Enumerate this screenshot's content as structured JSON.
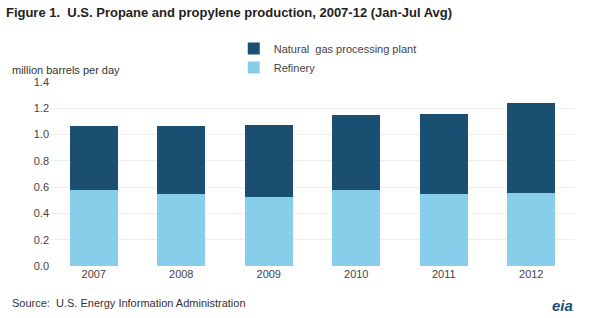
{
  "chart_data": {
    "type": "bar",
    "title": "Figure 1.  U.S. Propane and propylene production, 2007-12 (Jan-Jul Avg)",
    "ylabel": "million barrels per day",
    "categories": [
      "2007",
      "2008",
      "2009",
      "2010",
      "2011",
      "2012"
    ],
    "series": [
      {
        "name": "Refinery",
        "color": "#87CEEB",
        "values": [
          0.575,
          0.545,
          0.525,
          0.575,
          0.55,
          0.555
        ]
      },
      {
        "name": "Natural  gas processing plant",
        "color": "#1B4F72",
        "values": [
          0.49,
          0.52,
          0.545,
          0.575,
          0.61,
          0.685
        ]
      }
    ],
    "stacked": true,
    "ylim": [
      0,
      1.4
    ],
    "yticks": [
      {
        "value": 0,
        "label": "0.0"
      },
      0.2,
      0.4,
      0.6,
      0.8,
      {
        "value": 1,
        "label": "1.0"
      },
      1.2,
      1.4
    ],
    "grid": true,
    "legend": "top",
    "annotations": [
      "Source:  U.S. Energy Information Administration",
      "eia"
    ]
  }
}
